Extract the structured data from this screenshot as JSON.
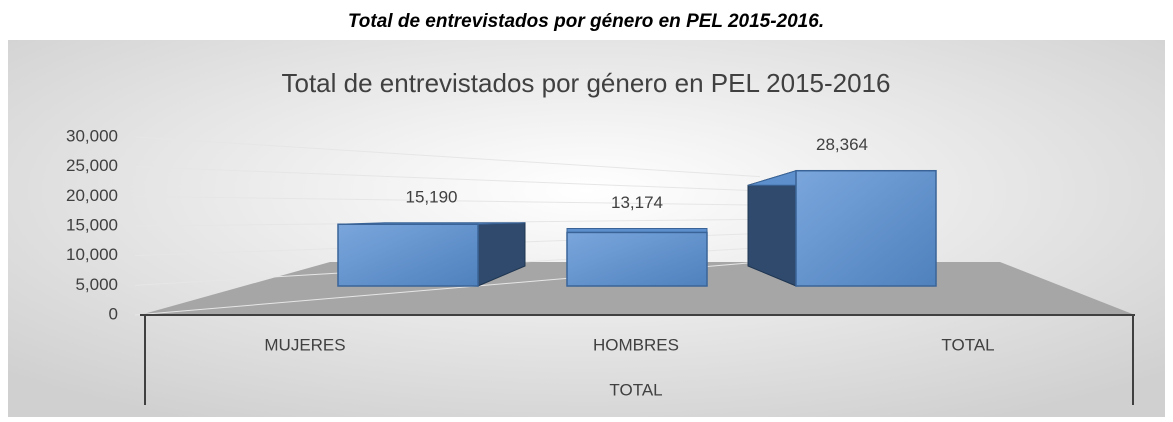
{
  "chart_data": {
    "type": "bar3d",
    "caption": "Total de entrevistados por género en PEL 2015-2016.",
    "title": "Total de entrevistados por género en PEL 2015-2016",
    "categories": [
      "MUJERES",
      "HOMBRES",
      "TOTAL"
    ],
    "group_label": "TOTAL",
    "values": [
      15190,
      13174,
      28364
    ],
    "value_labels": [
      "15,190",
      "13,174",
      "28,364"
    ],
    "color": "#4f81bd",
    "ylim": [
      0,
      30000
    ],
    "yticks": [
      0,
      {
        "value": 5000,
        "label": "5,000"
      },
      {
        "value": 10000,
        "label": "10,000"
      },
      {
        "value": 15000,
        "label": "15,000"
      },
      {
        "value": 20000,
        "label": "20,000"
      },
      {
        "value": 25000,
        "label": "25,000"
      },
      {
        "value": 30000,
        "label": "30,000"
      }
    ],
    "grid": true
  }
}
